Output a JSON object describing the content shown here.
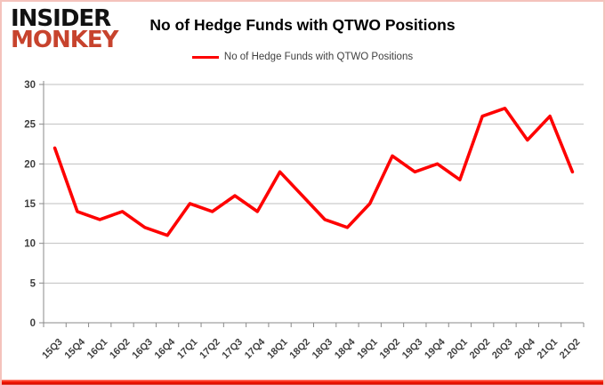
{
  "logo": {
    "line1": "INSIDER",
    "line2": "MONKEY"
  },
  "header": {
    "title": "No of Hedge Funds with QTWO Positions"
  },
  "legend": {
    "label": "No of Hedge Funds with QTWO Positions",
    "line_color": "#fe0000"
  },
  "colors": {
    "series_red": "#fe0000",
    "gridline": "#bfbfbf",
    "axis": "#898989",
    "tick_label": "#3f3f3f",
    "logo_red": "#c7432d",
    "border_pink": "#f4c3bc",
    "border_bottom_red": "#f51500"
  },
  "chart_data": {
    "type": "line",
    "title": "No of Hedge Funds with QTWO Positions",
    "xlabel": "",
    "ylabel": "",
    "categories": [
      "15Q3",
      "15Q4",
      "16Q1",
      "16Q2",
      "16Q3",
      "16Q4",
      "17Q1",
      "17Q2",
      "17Q3",
      "17Q4",
      "18Q1",
      "18Q2",
      "18Q3",
      "18Q4",
      "19Q1",
      "19Q2",
      "19Q3",
      "19Q4",
      "20Q1",
      "20Q2",
      "20Q3",
      "20Q4",
      "21Q1",
      "21Q2"
    ],
    "series": [
      {
        "name": "No of Hedge Funds with QTWO Positions",
        "color": "#fe0000",
        "values": [
          22,
          14,
          13,
          14,
          12,
          11,
          15,
          14,
          16,
          14,
          19,
          16,
          13,
          12,
          15,
          21,
          19,
          20,
          18,
          26,
          27,
          23,
          26,
          19
        ]
      }
    ],
    "ylim": [
      0,
      30
    ],
    "ytick_step": 5,
    "grid": true,
    "legend_position": "top"
  }
}
